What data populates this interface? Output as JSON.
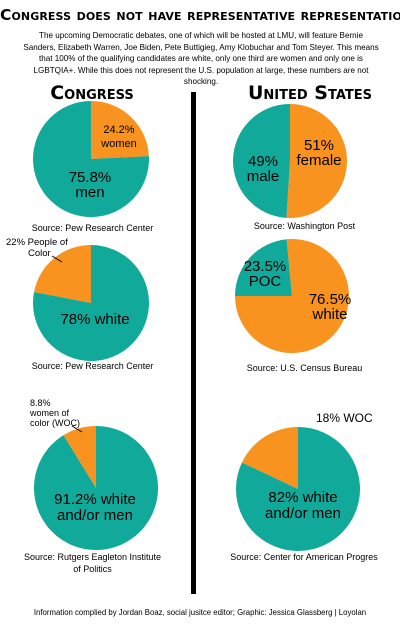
{
  "title": "Congress does not have representative representation",
  "intro": "The upcoming Democratic debates, one of which will be hosted at LMU, will feature Bernie Sanders, Elizabeth Warren, Joe Biden, Pete Buttigieg, Amy Klobuchar and Tom Steyer. This means that 100% of the qualifying candidates are white, only one third are women and only one is LGBTQIA+. While this does not represent the U.S. population at large, these numbers are not shocking.",
  "columns": {
    "left": "Congress",
    "right": "United States"
  },
  "colors": {
    "orange": "#F7931E",
    "teal": "#10A99A",
    "divider": "#000000"
  },
  "chart_data": [
    {
      "type": "pie",
      "group": "Congress",
      "source": "Source: Pew Research Center",
      "slices": [
        {
          "value": 24.2,
          "label": "24.2% women",
          "color": "#F7931E"
        },
        {
          "value": 75.8,
          "label": "75.8% men",
          "color": "#10A99A"
        }
      ]
    },
    {
      "type": "pie",
      "group": "Congress",
      "source": "Source: Pew Research Center",
      "slices": [
        {
          "value": 22,
          "label": "22% People of Color",
          "color": "#F7931E"
        },
        {
          "value": 78,
          "label": "78% white",
          "color": "#10A99A"
        }
      ]
    },
    {
      "type": "pie",
      "group": "Congress",
      "source": "Source: Rutgers Eagleton Institute of Politics",
      "slices": [
        {
          "value": 8.8,
          "label": "8.8% women of color (WOC)",
          "color": "#F7931E"
        },
        {
          "value": 91.2,
          "label": "91.2% white and/or men",
          "color": "#10A99A"
        }
      ]
    },
    {
      "type": "pie",
      "group": "United States",
      "source": "Source: Washington Post",
      "slices": [
        {
          "value": 51,
          "label": "51% female",
          "color": "#F7931E"
        },
        {
          "value": 49,
          "label": "49% male",
          "color": "#10A99A"
        }
      ]
    },
    {
      "type": "pie",
      "group": "United States",
      "source": "Source: U.S. Census Bureau",
      "slices": [
        {
          "value": 23.5,
          "label": "23.5% POC",
          "color": "#10A99A"
        },
        {
          "value": 76.5,
          "label": "76.5% white",
          "color": "#F7931E"
        }
      ]
    },
    {
      "type": "pie",
      "group": "United States",
      "source": "Source: Center for American Progres",
      "slices": [
        {
          "value": 18,
          "label": "18% WOC",
          "color": "#F7931E"
        },
        {
          "value": 82,
          "label": "82% white and/or men",
          "color": "#10A99A"
        }
      ]
    }
  ],
  "labels": {
    "c1_women_pct": "24.2%",
    "c1_women": "women",
    "c1_men_pct": "75.8%",
    "c1_men": "men",
    "c2_poc_line1": "22% People of",
    "c2_poc_line2": "Color",
    "c2_white": "78% white",
    "c3_woc_line1": "8.8%",
    "c3_woc_line2": "women of",
    "c3_woc_line3": "color (WOC)",
    "c3_white_line1": "91.2% white",
    "c3_white_line2": "and/or men",
    "u1_female_pct": "51%",
    "u1_female": "female",
    "u1_male_pct": "49%",
    "u1_male": "male",
    "u2_poc_pct": "23.5%",
    "u2_poc": "POC",
    "u2_white_pct": "76.5%",
    "u2_white": "white",
    "u3_woc": "18% WOC",
    "u3_white_line1": "82% white",
    "u3_white_line2": "and/or men",
    "src_line2_c3": "of Politics"
  },
  "sources": {
    "c1": "Source: Pew Research Center",
    "c2": "Source: Pew Research Center",
    "c3_line1": "Source: Rutgers Eagleton Institute",
    "u1": "Source: Washington Post",
    "u2": "Source: U.S. Census Bureau",
    "u3": "Source: Center for American Progres"
  },
  "footer": "Information complied by Jordan Boaz, social jusitce editor; Graphic: Jessica Glassberg | Loyolan"
}
